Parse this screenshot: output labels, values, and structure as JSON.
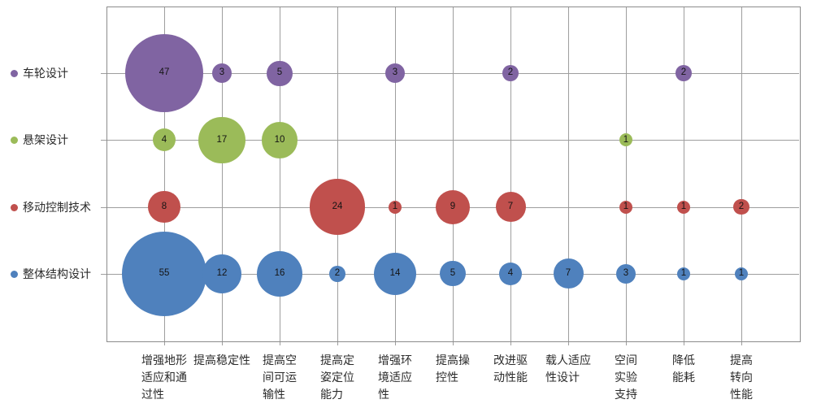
{
  "chart_data": {
    "type": "bubble",
    "title": "",
    "legend_position": "left",
    "grid": true,
    "grid_color": "#9e9e9e",
    "border_color": "#8c8c8c",
    "label_color": "#2b2b2b",
    "x_categories": [
      "增强地形适应和通过性",
      "提高稳定性",
      "提高空间可运输性",
      "提高定姿定位能力",
      "增强环境适应性",
      "提高操控性",
      "改进驱动性能",
      "载人适应性设计",
      "空间实验支持",
      "降低能耗",
      "提高转向性能"
    ],
    "x_tick_labels": [
      "增强地形\n适应和通\n过性",
      "提高稳定性",
      "提高空\n间可运\n输性",
      "提高定\n姿定位\n能力",
      "增强环\n境适应\n性",
      "提高操\n控性",
      "改进驱\n动性能",
      "载人适应\n性设计",
      "空间\n实验\n支持",
      "降低\n能耗",
      "提高\n转向\n性能"
    ],
    "y_categories": [
      "车轮设计",
      "悬架设计",
      "移动控制技术",
      "整体结构设计"
    ],
    "series": [
      {
        "name": "车轮设计",
        "color": "#8064A2",
        "values": [
          47,
          3,
          5,
          null,
          3,
          null,
          2,
          null,
          null,
          2,
          null
        ]
      },
      {
        "name": "悬架设计",
        "color": "#9BBB59",
        "values": [
          4,
          17,
          10,
          null,
          null,
          null,
          null,
          null,
          1,
          null,
          null
        ]
      },
      {
        "name": "移动控制技术",
        "color": "#C0504D",
        "values": [
          8,
          null,
          null,
          24,
          1,
          9,
          7,
          null,
          1,
          1,
          2
        ]
      },
      {
        "name": "整体结构设计",
        "color": "#4F81BD",
        "values": [
          55,
          12,
          16,
          2,
          14,
          5,
          4,
          7,
          3,
          1,
          1
        ]
      }
    ]
  }
}
